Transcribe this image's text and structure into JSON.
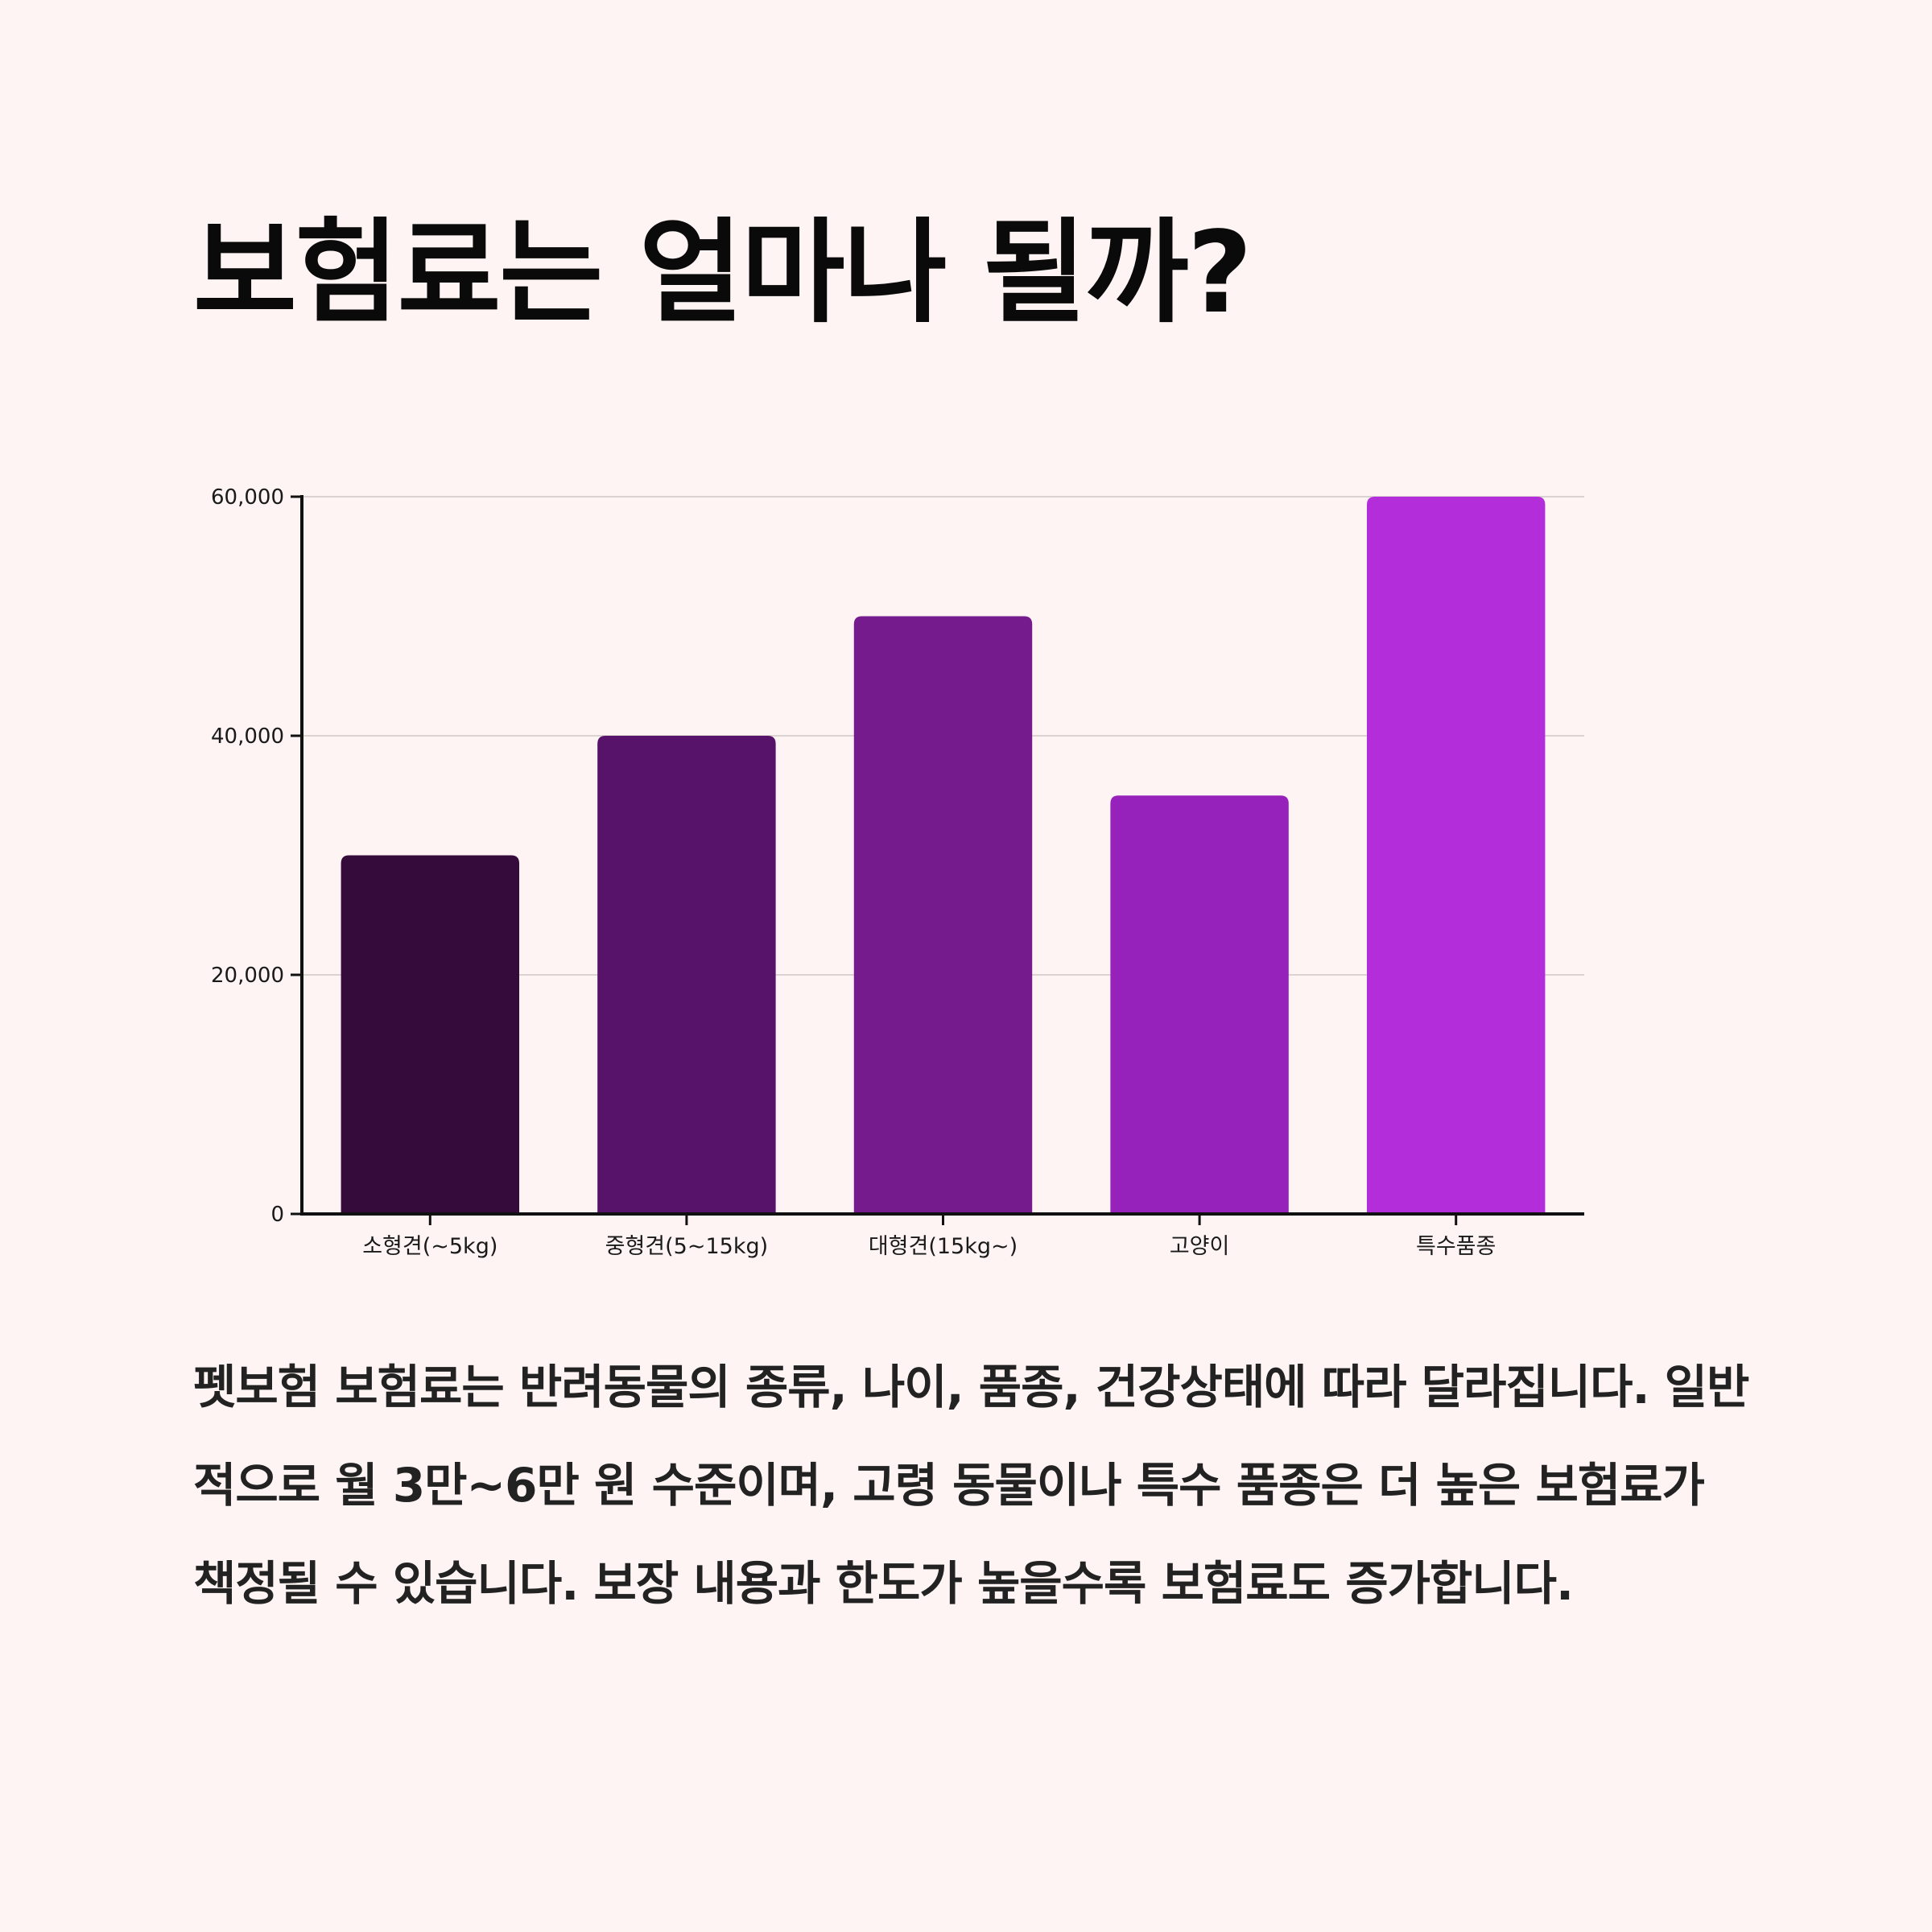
{
  "title": "보험료는 얼마나 될까?",
  "chart_data": {
    "type": "bar",
    "categories": [
      "소형견(~5kg)",
      "중형견(5~15kg)",
      "대형견(15kg~)",
      "고양이",
      "특수품종"
    ],
    "values": [
      30000,
      40000,
      50000,
      35000,
      60000
    ],
    "colors": [
      "#340b3a",
      "#561369",
      "#751b8e",
      "#9722bb",
      "#b42ddb"
    ],
    "yticks": [
      "0",
      "20,000",
      "40,000",
      "60,000"
    ],
    "ylim": [
      0,
      60000
    ],
    "grid": true,
    "legend": "none",
    "xlabel": "",
    "ylabel": ""
  },
  "description": "펫보험 보험료는 반려동물의 종류, 나이, 품종, 건강상태에 따라 달라집니다. 일반적으로 월 3만~6만 원 수준이며, 고령 동물이나 특수 품종은 더 높은 보험료가 책정될 수 있습니다. 보장 내용과 한도가 높을수록 보험료도 증가합니다."
}
